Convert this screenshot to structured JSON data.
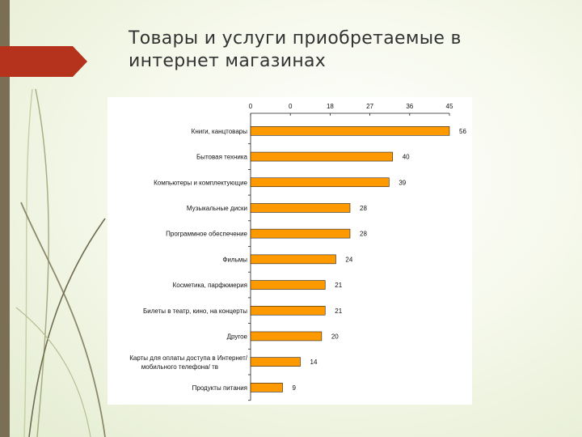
{
  "slide": {
    "title": "Товары и услуги приобретаемые в интернет магазинах"
  },
  "colors": {
    "bar_fill": "#ff9900",
    "bar_stroke": "#222222",
    "ribbon": "#b5321c",
    "sidebar": "#7a6f55"
  },
  "chart_data": {
    "type": "bar",
    "orientation": "horizontal",
    "title": "",
    "xlabel": "",
    "ylabel": "",
    "tick_labels": [
      "0",
      "0",
      "18",
      "27",
      "36",
      "45"
    ],
    "xlim": [
      0,
      56
    ],
    "grid": false,
    "categories": [
      "Книги, канцтовары",
      "Бытовая техника",
      "Компьютеры и комплектующие",
      "Музыкальные диски",
      "Программное обеспечение",
      "Фильмы",
      "Косметика, парфюмерия",
      "Билеты в театр, кино, на концерты",
      "Другое",
      "Карты для оплаты доступа в Интернет/ мобильного телефона/ тв",
      "Продукты питания"
    ],
    "values": [
      56,
      40,
      39,
      28,
      28,
      24,
      21,
      21,
      20,
      14,
      9
    ],
    "value_labels": [
      "56",
      "40",
      "39",
      "28",
      "28",
      "24",
      "21",
      "21",
      "20",
      "14",
      "9"
    ]
  }
}
